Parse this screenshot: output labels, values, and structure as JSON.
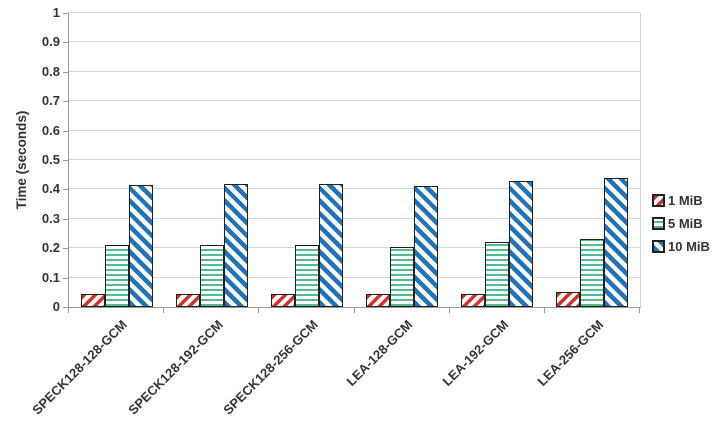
{
  "chart_data": {
    "type": "bar",
    "title": "",
    "xlabel": "",
    "ylabel": "Time (seconds)",
    "ylim": [
      0,
      1
    ],
    "ytick_step": 0.1,
    "yticks": [
      "0",
      "0.1",
      "0.2",
      "0.3",
      "0.4",
      "0.5",
      "0.6",
      "0.7",
      "0.8",
      "0.9",
      "1"
    ],
    "grid": true,
    "legend_position": "right",
    "categories": [
      "SPECK128-128-GCM",
      "SPECK128-192-GCM",
      "SPECK128-256-GCM",
      "LEA-128-GCM",
      "LEA-192-GCM",
      "LEA-256-GCM"
    ],
    "series": [
      {
        "name": "1 MiB",
        "pattern": "diagonal-up",
        "color": "#ca362e",
        "values": [
          0.045,
          0.045,
          0.045,
          0.045,
          0.045,
          0.05
        ]
      },
      {
        "name": "5 MiB",
        "pattern": "horizontal",
        "color": "#52bc90",
        "values": [
          0.21,
          0.21,
          0.21,
          0.205,
          0.22,
          0.23
        ]
      },
      {
        "name": "10 MiB",
        "pattern": "diagonal-down",
        "color": "#2273b5",
        "values": [
          0.415,
          0.42,
          0.42,
          0.41,
          0.43,
          0.44
        ]
      }
    ],
    "colors": {
      "grid": "#d4d4d4",
      "axis": "#9b9b9b",
      "text": "#333333",
      "bar_border": "#1f1f1f",
      "background": "#ffffff"
    }
  }
}
